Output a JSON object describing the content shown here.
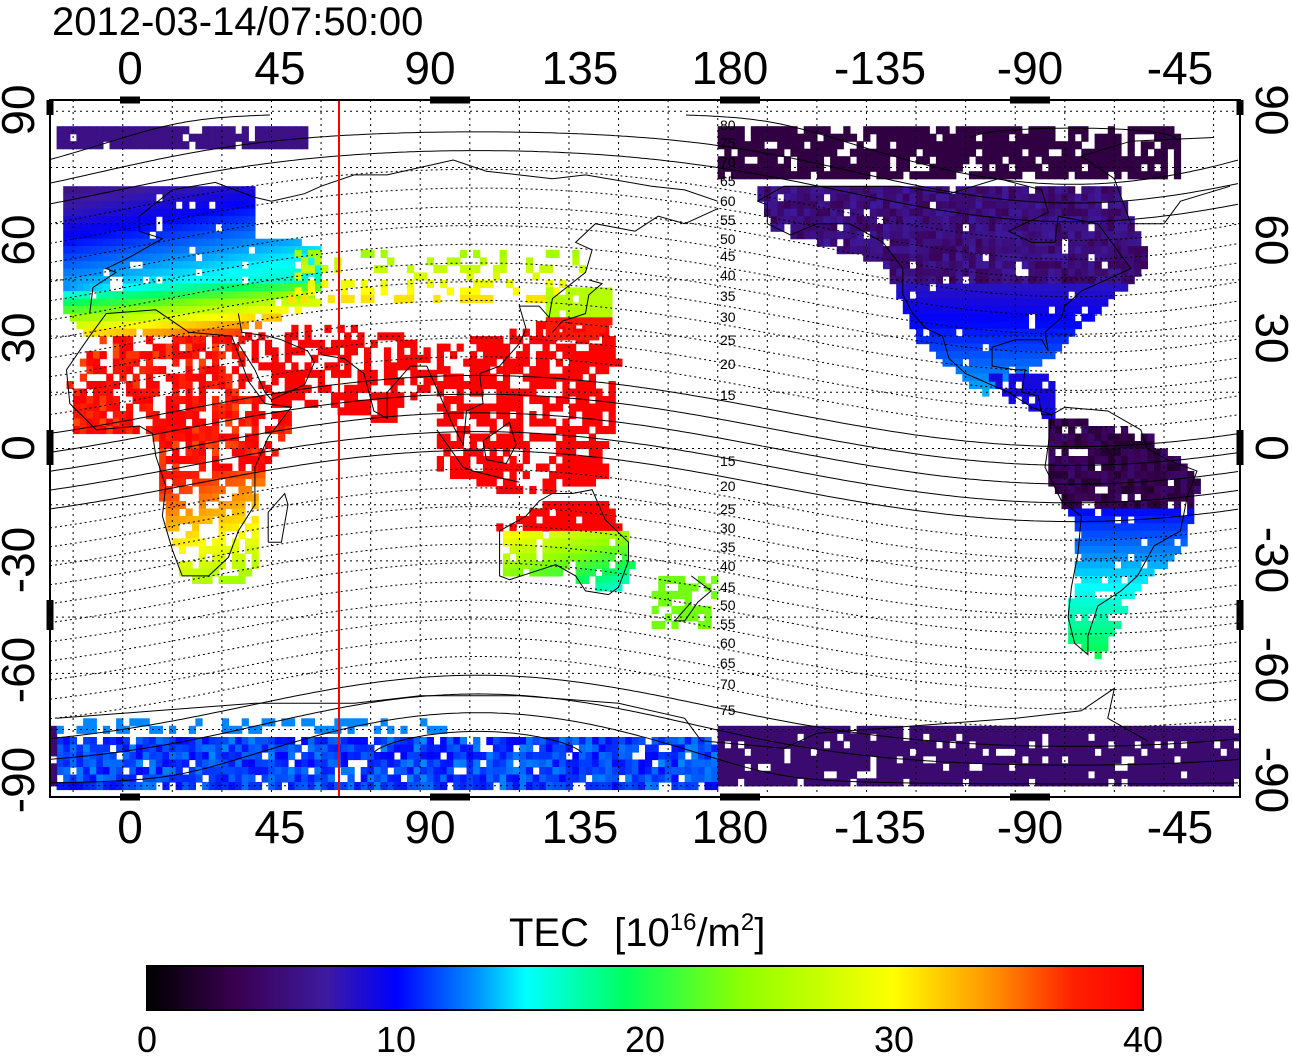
{
  "timestamp": "2012-03-14/07:50:00",
  "lon_ticks": [
    "0",
    "45",
    "90",
    "135",
    "180",
    "-135",
    "-90",
    "-45"
  ],
  "lat_ticks": [
    "90",
    "60",
    "30",
    "0",
    "-30",
    "-60",
    "-90"
  ],
  "colorbar": {
    "title": "TEC",
    "unit_prefix": "[10",
    "unit_exp1": "16",
    "unit_mid": "/m",
    "unit_exp2": "2",
    "unit_suffix": "]",
    "tick_labels": [
      "0",
      "10",
      "20",
      "30",
      "40"
    ],
    "min": 0,
    "max": 40,
    "colors": [
      "#000000",
      "#3a0050",
      "#3d1aa0",
      "#0000ff",
      "#0090ff",
      "#00ffff",
      "#00ff60",
      "#90ff00",
      "#ffff00",
      "#ff9000",
      "#ff2000",
      "#ff0000"
    ]
  },
  "contour_labels": [
    "80",
    "75",
    "70",
    "65",
    "60",
    "55",
    "50",
    "45",
    "40",
    "35",
    "30",
    "25",
    "20",
    "15",
    "15",
    "20",
    "25",
    "30",
    "35",
    "40",
    "45",
    "50",
    "55",
    "60",
    "65",
    "70",
    "75"
  ],
  "terminator_longitude": 63,
  "map_layers": {
    "coastlines": true,
    "grid": "dotted",
    "magnetic_latitude_contours": true
  }
}
